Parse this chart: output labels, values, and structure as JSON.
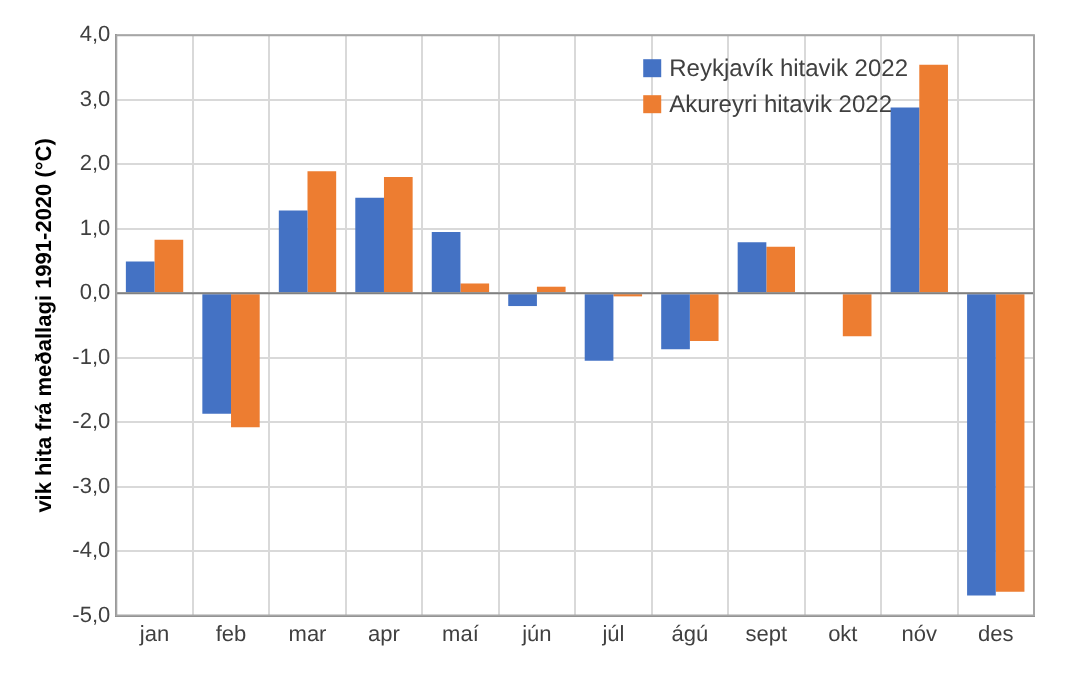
{
  "chart_data": {
    "type": "bar",
    "ylabel": "vik hita frá meðallagi 1991-2020 (°C)",
    "categories": [
      "jan",
      "feb",
      "mar",
      "apr",
      "maí",
      "jún",
      "júl",
      "ágú",
      "sept",
      "okt",
      "nóv",
      "des"
    ],
    "series": [
      {
        "name": "Reykjavík hitavik 2022",
        "color": "#4472c4",
        "values": [
          0.49,
          -1.87,
          1.28,
          1.48,
          0.95,
          -0.2,
          -1.05,
          -0.87,
          0.79,
          0.0,
          2.88,
          -4.69
        ]
      },
      {
        "name": "Akureyri hitavik 2022",
        "color": "#ed7d31",
        "values": [
          0.83,
          -2.08,
          1.89,
          1.8,
          0.15,
          0.1,
          -0.05,
          -0.74,
          0.72,
          -0.67,
          3.54,
          -4.63
        ]
      }
    ],
    "ylim": [
      -5,
      4
    ],
    "yticks": [
      {
        "value": -5,
        "label": "-5,0"
      },
      {
        "value": -4,
        "label": "-4,0"
      },
      {
        "value": -3,
        "label": "-3,0"
      },
      {
        "value": -2,
        "label": "-2,0"
      },
      {
        "value": -1,
        "label": "-1,0"
      },
      {
        "value": 0,
        "label": "0,0"
      },
      {
        "value": 1,
        "label": "1,0"
      },
      {
        "value": 2,
        "label": "2,0"
      },
      {
        "value": 3,
        "label": "3,0"
      },
      {
        "value": 4,
        "label": "4,0"
      }
    ],
    "grid": true,
    "legend": "top right"
  }
}
